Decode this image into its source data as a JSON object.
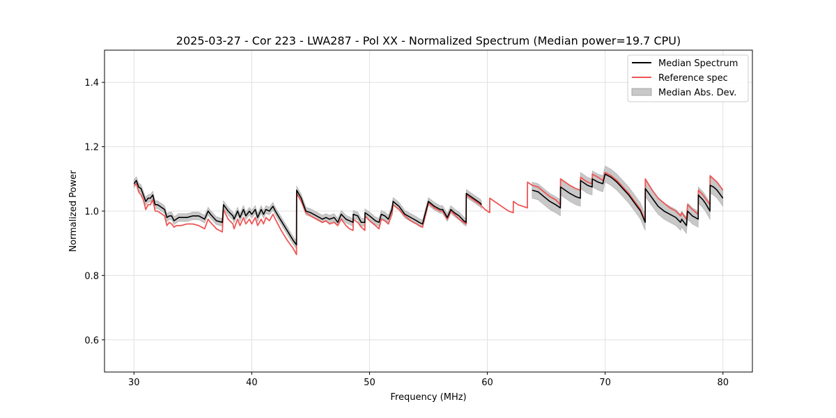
{
  "chart_data": {
    "type": "line",
    "title": "2025-03-27 - Cor 223 - LWA287 - Pol XX - Normalized Spectrum (Median power=19.7 CPU)",
    "xlabel": "Frequency (MHz)",
    "ylabel": "Normalized Power",
    "xlim": [
      27.5,
      82.5
    ],
    "ylim": [
      0.5,
      1.5
    ],
    "xticks": [
      30,
      40,
      50,
      60,
      70,
      80
    ],
    "yticks": [
      0.6,
      0.8,
      1.0,
      1.2,
      1.4
    ],
    "xtick_labels": [
      "30",
      "40",
      "50",
      "60",
      "70",
      "80"
    ],
    "ytick_labels": [
      "0.6",
      "0.8",
      "1.0",
      "1.2",
      "1.4"
    ],
    "grid": true,
    "legend_position": "top-right",
    "colors": {
      "median": "#000000",
      "reference": "#ee5555",
      "mad_fill": "#c8c8c8",
      "grid": "#e0e0e0"
    },
    "series": [
      {
        "name": "Median Spectrum",
        "segments": [
          {
            "x": [
              30.0,
              30.2,
              30.4,
              30.6,
              30.8,
              31.0,
              31.2,
              31.4,
              31.6,
              31.8,
              32.0,
              32.2,
              32.4,
              32.6,
              32.8,
              33.0,
              33.2,
              33.4,
              33.6,
              33.8,
              34.0,
              34.5,
              35.0,
              35.5,
              36.0,
              36.3,
              36.5,
              37.0,
              37.5,
              37.6,
              38.0,
              38.4,
              38.5,
              38.8,
              39.0,
              39.3,
              39.5,
              39.8,
              40.0,
              40.3,
              40.5,
              40.8,
              41.0,
              41.2,
              41.5,
              41.8,
              42.0,
              42.5,
              43.0,
              43.5,
              43.8,
              43.81,
              44.2,
              44.6,
              45.0,
              45.5,
              46.0,
              46.3,
              46.6,
              47.0,
              47.3,
              47.6,
              48.0,
              48.3,
              48.6,
              48.61,
              49.0,
              49.3,
              49.6,
              49.61,
              50.0,
              50.5,
              50.8,
              51.0,
              51.3,
              51.6,
              51.9,
              52.0,
              52.5,
              53.0,
              53.5,
              54.0,
              54.2,
              54.5,
              55.0,
              55.5,
              56.0,
              56.2,
              56.6,
              56.9,
              57.2,
              57.6,
              58.0,
              58.2,
              58.21,
              58.6,
              59.0,
              59.4,
              59.5
            ],
            "y": [
              1.085,
              1.095,
              1.075,
              1.07,
              1.05,
              1.03,
              1.04,
              1.04,
              1.05,
              1.02,
              1.02,
              1.015,
              1.01,
              1.005,
              0.98,
              0.985,
              0.985,
              0.97,
              0.975,
              0.98,
              0.98,
              0.98,
              0.985,
              0.985,
              0.975,
              1.0,
              0.99,
              0.97,
              0.965,
              1.02,
              1.0,
              0.985,
              0.975,
              1.0,
              0.98,
              1.005,
              0.985,
              1.0,
              0.99,
              1.005,
              0.98,
              1.005,
              0.99,
              1.005,
              1.0,
              1.015,
              1.0,
              0.97,
              0.94,
              0.91,
              0.895,
              1.065,
              1.04,
              1.0,
              0.995,
              0.985,
              0.975,
              0.98,
              0.975,
              0.98,
              0.965,
              0.99,
              0.975,
              0.97,
              0.965,
              0.99,
              0.985,
              0.965,
              0.965,
              0.995,
              0.985,
              0.97,
              0.965,
              0.99,
              0.985,
              0.975,
              1.005,
              1.03,
              1.015,
              0.99,
              0.98,
              0.97,
              0.965,
              0.96,
              1.03,
              1.015,
              1.005,
              1.005,
              0.98,
              1.005,
              0.995,
              0.985,
              0.97,
              0.965,
              1.055,
              1.045,
              1.035,
              1.025,
              1.02
            ]
          },
          {
            "x": [
              63.8,
              64.3,
              64.8,
              65.3,
              65.8,
              66.2,
              66.21,
              67.0,
              67.5,
              67.9,
              67.91,
              68.5,
              68.9,
              68.91,
              69.4,
              69.8,
              70.0,
              70.5,
              71.0,
              71.5,
              72.0,
              72.5,
              73.0,
              73.4,
              73.41,
              74.0,
              74.5,
              75.0,
              75.5,
              76.0,
              76.4,
              76.5,
              76.9,
              77.0,
              77.4,
              77.9,
              77.91,
              78.3,
              78.5,
              78.9,
              78.91,
              79.2,
              79.5,
              80.0
            ],
            "y": [
              1.065,
              1.06,
              1.045,
              1.03,
              1.02,
              1.01,
              1.075,
              1.055,
              1.045,
              1.04,
              1.095,
              1.08,
              1.075,
              1.1,
              1.09,
              1.085,
              1.115,
              1.105,
              1.09,
              1.07,
              1.05,
              1.025,
              1.0,
              0.965,
              1.07,
              1.04,
              1.015,
              1.0,
              0.99,
              0.98,
              0.965,
              0.975,
              0.955,
              1.0,
              0.985,
              0.975,
              1.05,
              1.035,
              1.025,
              1.0,
              1.08,
              1.075,
              1.065,
              1.04
            ]
          }
        ]
      },
      {
        "name": "Reference spec",
        "segments": [
          {
            "x": [
              30.0,
              30.2,
              30.4,
              30.6,
              30.8,
              31.0,
              31.2,
              31.4,
              31.6,
              31.8,
              32.0,
              32.2,
              32.4,
              32.6,
              32.8,
              33.0,
              33.2,
              33.4,
              33.6,
              33.8,
              34.0,
              34.5,
              35.0,
              35.5,
              36.0,
              36.3,
              36.5,
              37.0,
              37.5,
              37.6,
              38.0,
              38.4,
              38.5,
              38.8,
              39.0,
              39.3,
              39.5,
              39.8,
              40.0,
              40.3,
              40.5,
              40.8,
              41.0,
              41.2,
              41.5,
              41.8,
              42.0,
              42.5,
              43.0,
              43.5,
              43.8,
              43.81,
              44.2,
              44.6,
              45.0,
              45.5,
              46.0,
              46.3,
              46.6,
              47.0,
              47.3,
              47.6,
              48.0,
              48.3,
              48.6,
              48.61,
              49.0,
              49.3,
              49.6,
              49.61,
              50.0,
              50.5,
              50.8,
              51.0,
              51.3,
              51.6,
              51.9,
              52.0,
              52.5,
              53.0,
              53.5,
              54.0,
              54.2,
              54.5,
              55.0,
              55.5,
              56.0,
              56.2,
              56.6,
              56.9,
              57.2,
              57.6,
              58.0,
              58.2,
              58.21,
              58.6,
              59.0,
              59.4,
              59.8,
              60.2,
              60.21,
              60.6,
              61.0,
              61.4,
              61.8,
              62.2,
              62.21,
              62.6,
              63.0,
              63.4,
              63.41,
              63.8,
              64.3,
              64.8,
              65.3,
              65.8,
              66.2,
              66.21,
              67.0,
              67.5,
              67.9,
              67.91,
              68.5,
              68.9,
              68.91,
              69.4,
              69.8,
              70.0,
              70.5,
              71.0,
              71.5,
              72.0,
              72.5,
              73.0,
              73.4,
              73.41,
              74.0,
              74.5,
              75.0,
              75.5,
              76.0,
              76.4,
              76.5,
              76.9,
              77.0,
              77.4,
              77.9,
              77.91,
              78.3,
              78.5,
              78.9,
              78.91,
              79.2,
              79.5,
              80.0
            ],
            "y": [
              1.08,
              1.085,
              1.06,
              1.05,
              1.035,
              1.005,
              1.02,
              1.02,
              1.035,
              1.0,
              1.0,
              0.995,
              0.99,
              0.985,
              0.955,
              0.965,
              0.96,
              0.95,
              0.955,
              0.955,
              0.955,
              0.96,
              0.96,
              0.955,
              0.945,
              0.975,
              0.965,
              0.945,
              0.935,
              1.005,
              0.975,
              0.96,
              0.945,
              0.975,
              0.955,
              0.98,
              0.96,
              0.975,
              0.96,
              0.98,
              0.955,
              0.975,
              0.96,
              0.98,
              0.97,
              0.99,
              0.975,
              0.94,
              0.91,
              0.885,
              0.865,
              1.055,
              1.03,
              0.995,
              0.985,
              0.975,
              0.965,
              0.97,
              0.96,
              0.965,
              0.955,
              0.975,
              0.955,
              0.945,
              0.94,
              0.975,
              0.965,
              0.95,
              0.94,
              0.985,
              0.97,
              0.955,
              0.945,
              0.975,
              0.97,
              0.96,
              0.99,
              1.02,
              1.005,
              0.985,
              0.97,
              0.96,
              0.955,
              0.95,
              1.025,
              1.01,
              1.0,
              1.0,
              0.975,
              1.0,
              0.99,
              0.975,
              0.965,
              0.96,
              1.05,
              1.04,
              1.03,
              1.02,
              1.005,
              0.995,
              1.04,
              1.03,
              1.02,
              1.01,
              1.0,
              0.995,
              1.03,
              1.02,
              1.015,
              1.01,
              1.09,
              1.08,
              1.075,
              1.06,
              1.045,
              1.035,
              1.02,
              1.1,
              1.08,
              1.07,
              1.065,
              1.105,
              1.09,
              1.085,
              1.115,
              1.105,
              1.095,
              1.12,
              1.11,
              1.095,
              1.075,
              1.055,
              1.03,
              1.005,
              0.97,
              1.1,
              1.065,
              1.04,
              1.025,
              1.01,
              1.0,
              0.985,
              0.995,
              0.975,
              1.02,
              1.005,
              0.99,
              1.065,
              1.05,
              1.04,
              1.02,
              1.11,
              1.1,
              1.09,
              1.065
            ]
          }
        ]
      },
      {
        "name": "Median Abs. Dev.",
        "fill": true,
        "half_width": [
          {
            "x_range": [
              30.0,
              59.5
            ],
            "value": 0.012
          },
          {
            "x_range": [
              63.8,
              80.0
            ],
            "value": 0.025
          }
        ]
      }
    ],
    "legend": [
      "Median Spectrum",
      "Reference spec",
      "Median Abs. Dev."
    ]
  }
}
